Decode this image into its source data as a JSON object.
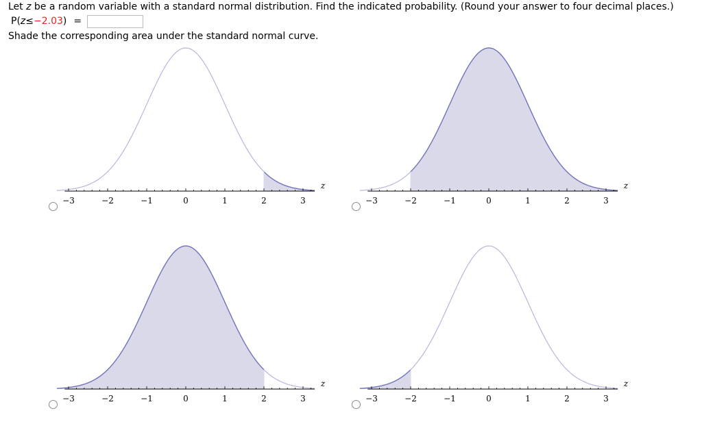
{
  "question": {
    "part1": "Let ",
    "var": "z",
    "part2": " be a random variable with a standard normal distribution. Find the indicated probability. (Round your answer to four decimal places.)"
  },
  "probability": {
    "p_label": "P(",
    "var": "z",
    "relation": " ≤ ",
    "value": "−2.03",
    "close": ")",
    "equals": "=",
    "answer": ""
  },
  "instruction": "Shade the corresponding area under the standard normal curve.",
  "axis": {
    "name": "z",
    "ticks": [
      "−3",
      "−2",
      "−1",
      "0",
      "1",
      "2",
      "3"
    ]
  },
  "colors": {
    "curve_dark": "#6f72b8",
    "curve_light": "#b6b6e0",
    "shade": "#d9d9ea",
    "axis": "#000000",
    "red_value": "#e8241f"
  },
  "options": [
    {
      "id": "option-a",
      "shade_from": 2,
      "shade_to": 3.3,
      "selected": false
    },
    {
      "id": "option-b",
      "shade_from": -2,
      "shade_to": 3.3,
      "selected": false
    },
    {
      "id": "option-c",
      "shade_from": -3.3,
      "shade_to": 2,
      "selected": false
    },
    {
      "id": "option-d",
      "shade_from": -3.3,
      "shade_to": -2,
      "selected": false
    }
  ]
}
